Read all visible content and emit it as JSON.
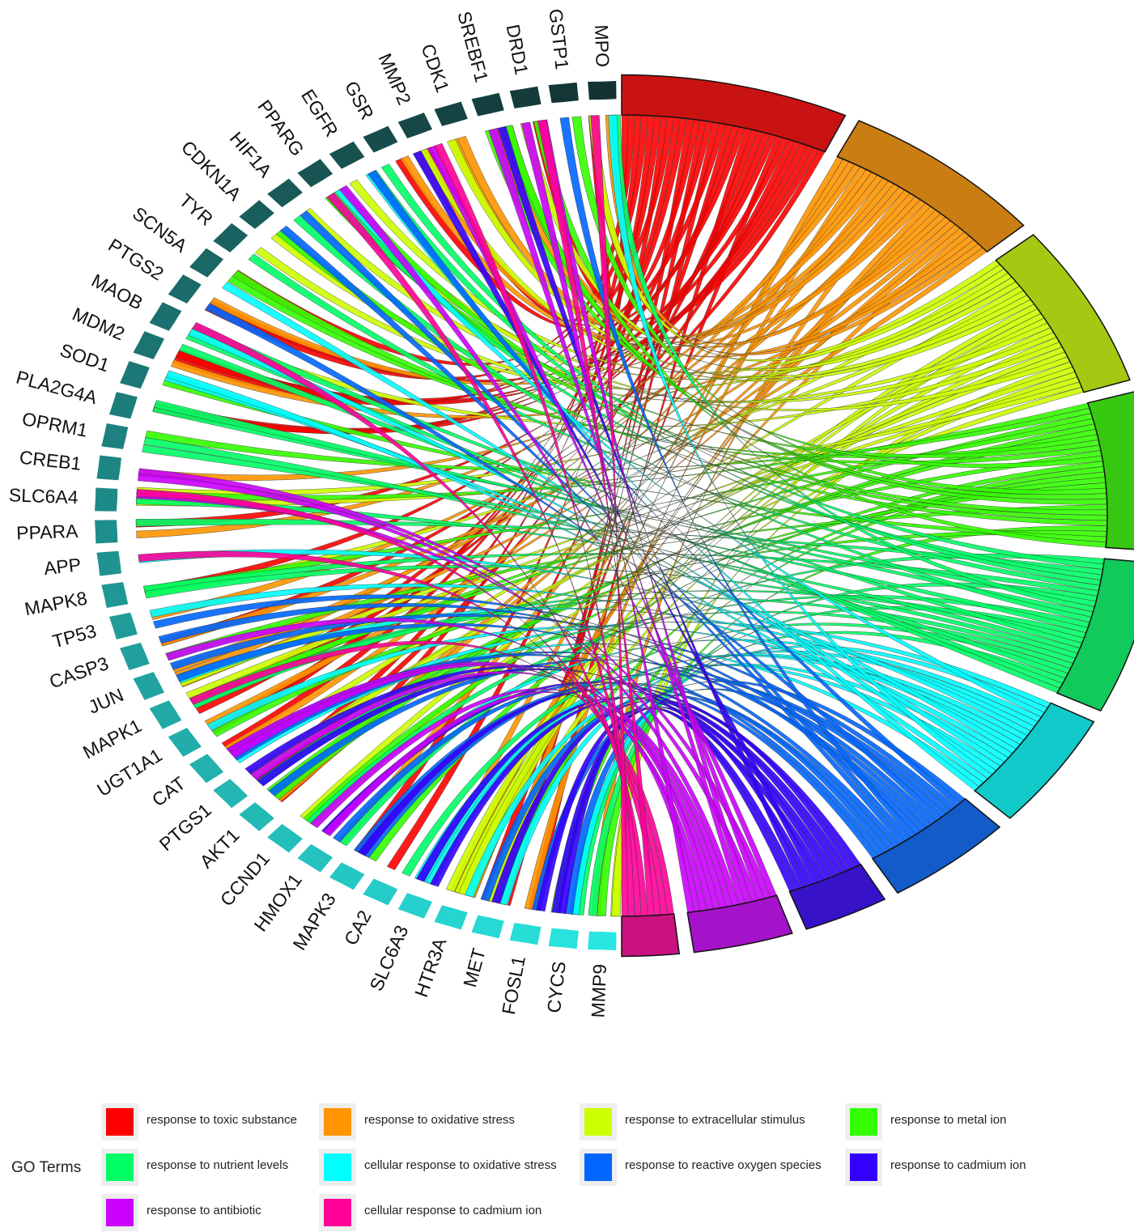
{
  "chart_data": {
    "type": "chord",
    "genes": [
      "MPO",
      "GSTP1",
      "DRD1",
      "SREBF1",
      "CDK1",
      "MMP2",
      "GSR",
      "EGFR",
      "PPARG",
      "HIF1A",
      "CDKN1A",
      "TYR",
      "SCN5A",
      "PTGS2",
      "MAOB",
      "MDM2",
      "SOD1",
      "PLA2G4A",
      "OPRM1",
      "CREB1",
      "SLC6A4",
      "PPARA",
      "APP",
      "MAPK8",
      "TP53",
      "CASP3",
      "JUN",
      "MAPK1",
      "UGT1A1",
      "CAT",
      "PTGS1",
      "AKT1",
      "CCND1",
      "HMOX1",
      "MAPK3",
      "CA2",
      "SLC6A3",
      "HTR3A",
      "MET",
      "FOSL1",
      "CYCS",
      "MMP9"
    ],
    "terms": [
      {
        "name": "response to toxic substance",
        "color": "#ff0000",
        "size": 32
      },
      {
        "name": "response to oxidative stress",
        "color": "#ff9500",
        "size": 29
      },
      {
        "name": "response to extracellular stimulus",
        "color": "#ccff00",
        "size": 28
      },
      {
        "name": "response to metal ion",
        "color": "#33ff00",
        "size": 27
      },
      {
        "name": "response to nutrient levels",
        "color": "#00ff66",
        "size": 26
      },
      {
        "name": "cellular response to oxidative stress",
        "color": "#00ffff",
        "size": 20
      },
      {
        "name": "response to reactive oxygen species",
        "color": "#0066ff",
        "size": 18
      },
      {
        "name": "response to cadmium ion",
        "color": "#3300ff",
        "size": 12
      },
      {
        "name": "response to antibiotic",
        "color": "#cc00ff",
        "size": 14
      },
      {
        "name": "cellular response to cadmium ion",
        "color": "#ff0099",
        "size": 8
      }
    ]
  },
  "legend": {
    "title": "GO Terms",
    "items": [
      {
        "label": "response to toxic substance",
        "color": "#ff0000"
      },
      {
        "label": "response to oxidative stress",
        "color": "#ff9500"
      },
      {
        "label": "response to extracellular stimulus",
        "color": "#ccff00"
      },
      {
        "label": "response to metal ion",
        "color": "#33ff00"
      },
      {
        "label": "response to nutrient levels",
        "color": "#00ff66"
      },
      {
        "label": "cellular response to oxidative stress",
        "color": "#00ffff"
      },
      {
        "label": "response to reactive oxygen species",
        "color": "#0066ff"
      },
      {
        "label": "response to cadmium ion",
        "color": "#3300ff"
      },
      {
        "label": "response to antibiotic",
        "color": "#cc00ff"
      },
      {
        "label": "cellular response to cadmium ion",
        "color": "#ff0099"
      }
    ]
  }
}
